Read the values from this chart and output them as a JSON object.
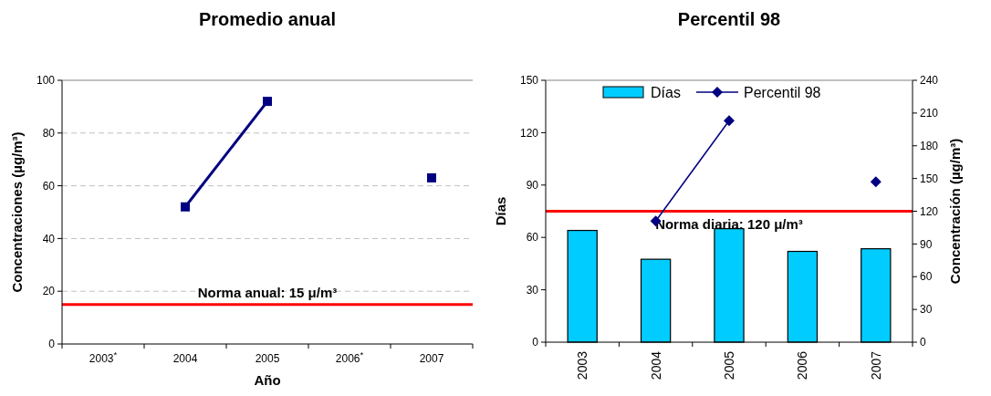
{
  "chart_data": [
    {
      "type": "line",
      "title": "Promedio anual",
      "xlabel": "Año",
      "ylabel": "Concentraciones (µg/m³)",
      "categories": [
        "2003$^{*}$",
        "2004",
        "2005",
        "2006$^{*}$",
        "2007"
      ],
      "series": [
        {
          "color": "#000080",
          "values": [
            null,
            52,
            92,
            null,
            63
          ],
          "marker": "square"
        }
      ],
      "ylim": [
        0,
        100
      ],
      "yticks": [
        0,
        20,
        40,
        60,
        80,
        100
      ],
      "grid": "y",
      "legend": false,
      "ref_lines": [
        {
          "axis": "y",
          "value": 15,
          "label": "Norma anual: 15 μ/m³",
          "color": "#ff0000"
        }
      ]
    },
    {
      "type": "bar",
      "title": "Percentil 98",
      "ylabel": "Días",
      "y2label": "Concentración (µg/m³)",
      "categories": [
        "2003",
        "2004",
        "2005",
        "2006",
        "2007"
      ],
      "series": [
        {
          "name": "Días",
          "type": "bar",
          "color": "#00ccff",
          "values": [
            64,
            47.5,
            65,
            52,
            53.5
          ]
        },
        {
          "name": "Percentil 98",
          "type": "line",
          "axis": "y2",
          "color": "#000080",
          "marker": "diamond",
          "values": [
            null,
            111,
            203,
            null,
            147
          ]
        }
      ],
      "ylim": [
        0,
        150
      ],
      "yticks": [
        0,
        30,
        60,
        90,
        120,
        150
      ],
      "y2lim": [
        0,
        240
      ],
      "y2ticks": [
        0,
        30,
        60,
        90,
        120,
        150,
        180,
        210,
        240
      ],
      "grid": false,
      "legend": "top",
      "ref_lines": [
        {
          "axis": "y2",
          "value": 120,
          "label": "Norma diaria: 120 μ/m³",
          "color": "#ff0000"
        }
      ]
    }
  ]
}
